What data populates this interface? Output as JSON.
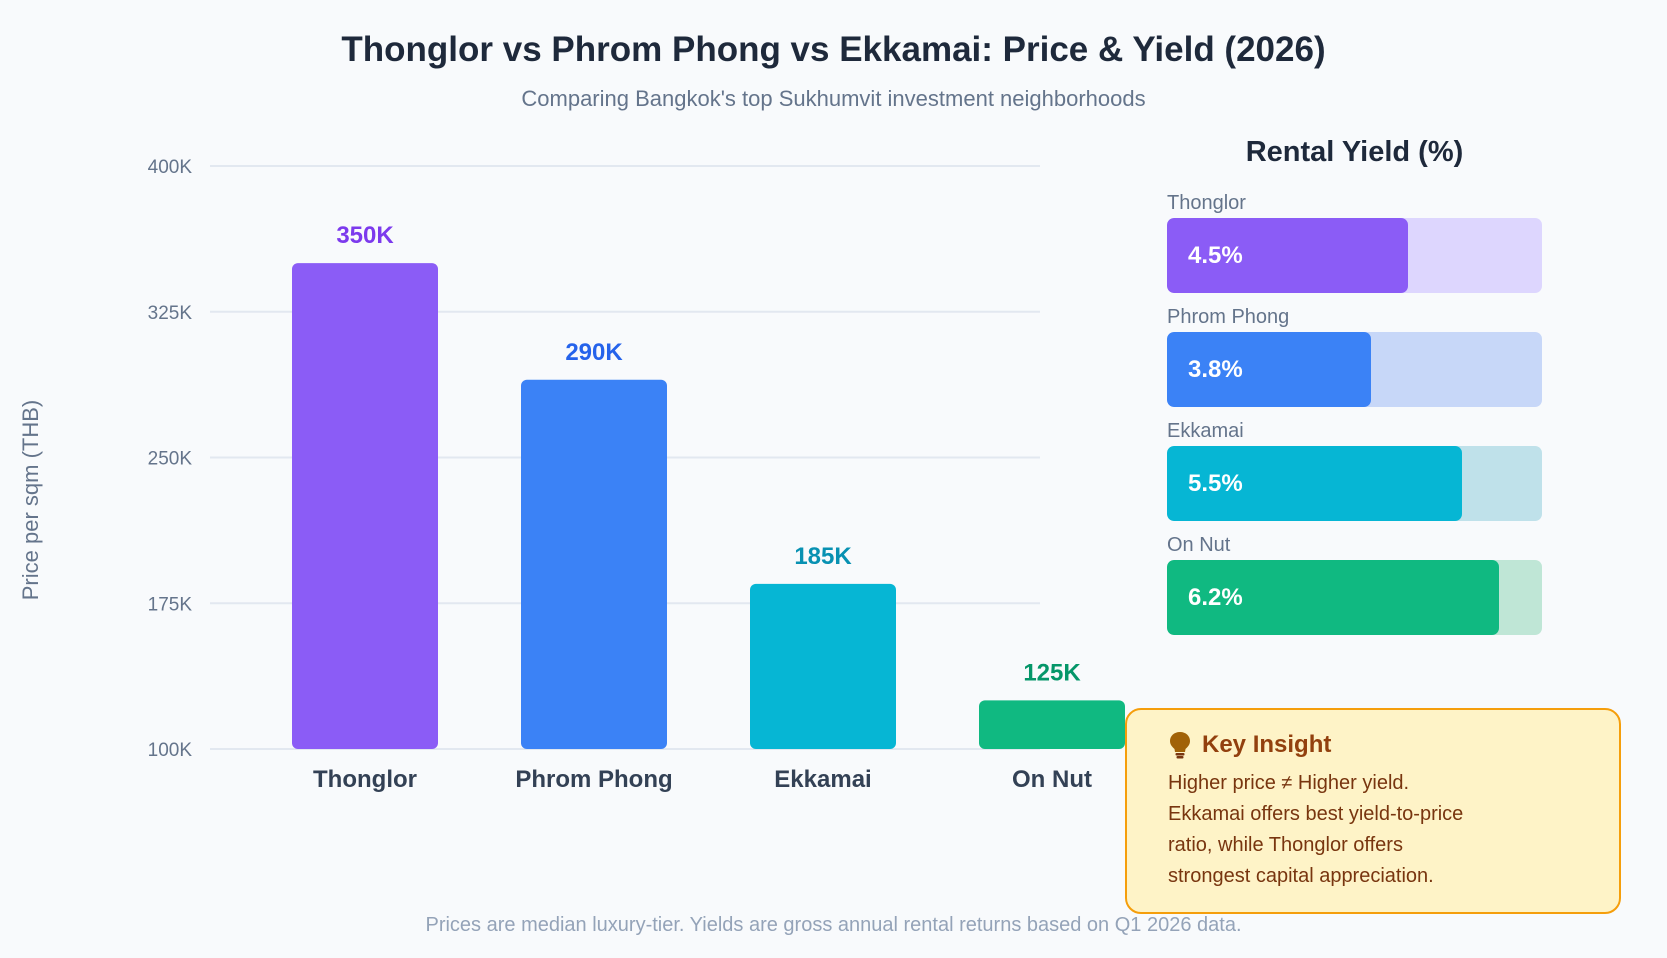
{
  "chart_data": [
    {
      "type": "bar",
      "title": "Thonglor vs Phrom Phong vs Ekkamai: Price & Yield (2026)",
      "subtitle": "Comparing Bangkok's top Sukhumvit investment neighborhoods",
      "ylabel": "Price per sqm (THB)",
      "xlabel": "",
      "ylim": [
        100000,
        400000
      ],
      "yticks": [
        100000,
        175000,
        250000,
        325000,
        400000
      ],
      "ytick_labels": [
        "100K",
        "175K",
        "250K",
        "325K",
        "400K"
      ],
      "grid": true,
      "categories": [
        "Thonglor",
        "Phrom Phong",
        "Ekkamai",
        "On Nut"
      ],
      "values": [
        350000,
        290000,
        185000,
        125000
      ],
      "value_labels": [
        "350K",
        "290K",
        "185K",
        "125K"
      ],
      "colors": [
        "#8b5cf6",
        "#3b82f6",
        "#06b6d4",
        "#10b981"
      ],
      "label_colors": [
        "#7c3aed",
        "#2563eb",
        "#0891b2",
        "#059669"
      ]
    },
    {
      "type": "bar",
      "orientation": "horizontal",
      "title": "Rental Yield (%)",
      "max": 7,
      "categories": [
        "Thonglor",
        "Phrom Phong",
        "Ekkamai",
        "On Nut"
      ],
      "values": [
        4.5,
        3.8,
        5.5,
        6.2
      ],
      "value_labels": [
        "4.5%",
        "3.8%",
        "5.5%",
        "6.2%"
      ],
      "colors": [
        "#8b5cf6",
        "#3b82f6",
        "#06b6d4",
        "#10b981"
      ],
      "track_colors": [
        "#ddd6fe",
        "#c7d7f8",
        "#bfe1ea",
        "#bfe6d6"
      ]
    }
  ],
  "insight": {
    "title": "Key Insight",
    "icon": "lightbulb-icon",
    "lines": [
      "Higher price ≠ Higher yield.",
      "Ekkamai offers best yield-to-price",
      "ratio, while Thonglor offers",
      "strongest capital appreciation."
    ]
  },
  "footer": "Prices are median luxury-tier. Yields are gross annual rental returns based on Q1 2026 data."
}
